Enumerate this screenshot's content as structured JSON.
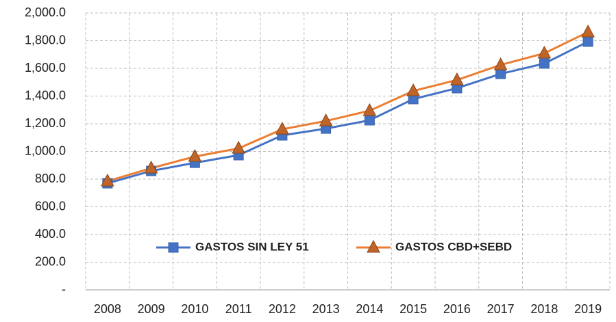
{
  "chart_data": {
    "type": "line",
    "categories": [
      "2008",
      "2009",
      "2010",
      "2011",
      "2012",
      "2013",
      "2014",
      "2015",
      "2016",
      "2017",
      "2018",
      "2019"
    ],
    "series": [
      {
        "name": "GASTOS SIN LEY 51",
        "color": "#4472c4",
        "marker": "square",
        "values": [
          770,
          859,
          918,
          973,
          1116,
          1165,
          1225,
          1378,
          1457,
          1560,
          1635,
          1793
        ]
      },
      {
        "name": "GASTOS CBD+SEBD",
        "color": "#ed7d31",
        "marker": "triangle",
        "values": [
          785,
          879,
          963,
          1022,
          1160,
          1220,
          1294,
          1437,
          1516,
          1625,
          1709,
          1862
        ]
      }
    ],
    "ylim": [
      0,
      2000
    ],
    "yticks": [
      {
        "value": 0,
        "label": "-"
      },
      {
        "value": 200,
        "label": "200.0"
      },
      {
        "value": 400,
        "label": "400.0"
      },
      {
        "value": 600,
        "label": "600.0"
      },
      {
        "value": 800,
        "label": "800.0"
      },
      {
        "value": 1000,
        "label": "1,000.0"
      },
      {
        "value": 1200,
        "label": "1,200.0"
      },
      {
        "value": 1400,
        "label": "1,400.0"
      },
      {
        "value": 1600,
        "label": "1,600.0"
      },
      {
        "value": 1800,
        "label": "1,800.0"
      },
      {
        "value": 2000,
        "label": "2,000.0"
      }
    ],
    "grid": true
  }
}
